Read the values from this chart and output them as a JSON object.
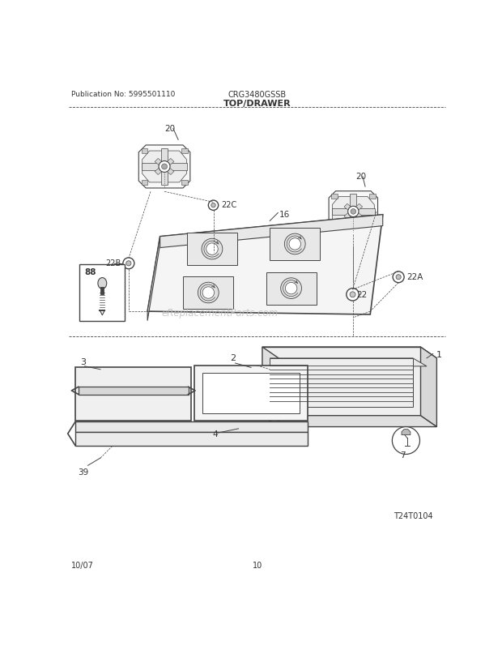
{
  "title": "TOP/DRAWER",
  "pub_no": "Publication No: 5995501110",
  "model": "CRG3480GSSB",
  "date": "10/07",
  "page": "10",
  "watermark": "eReplacementParts.com",
  "diagram_ref": "T24T0104",
  "bg_color": "#ffffff",
  "line_color": "#444444",
  "text_color": "#333333"
}
